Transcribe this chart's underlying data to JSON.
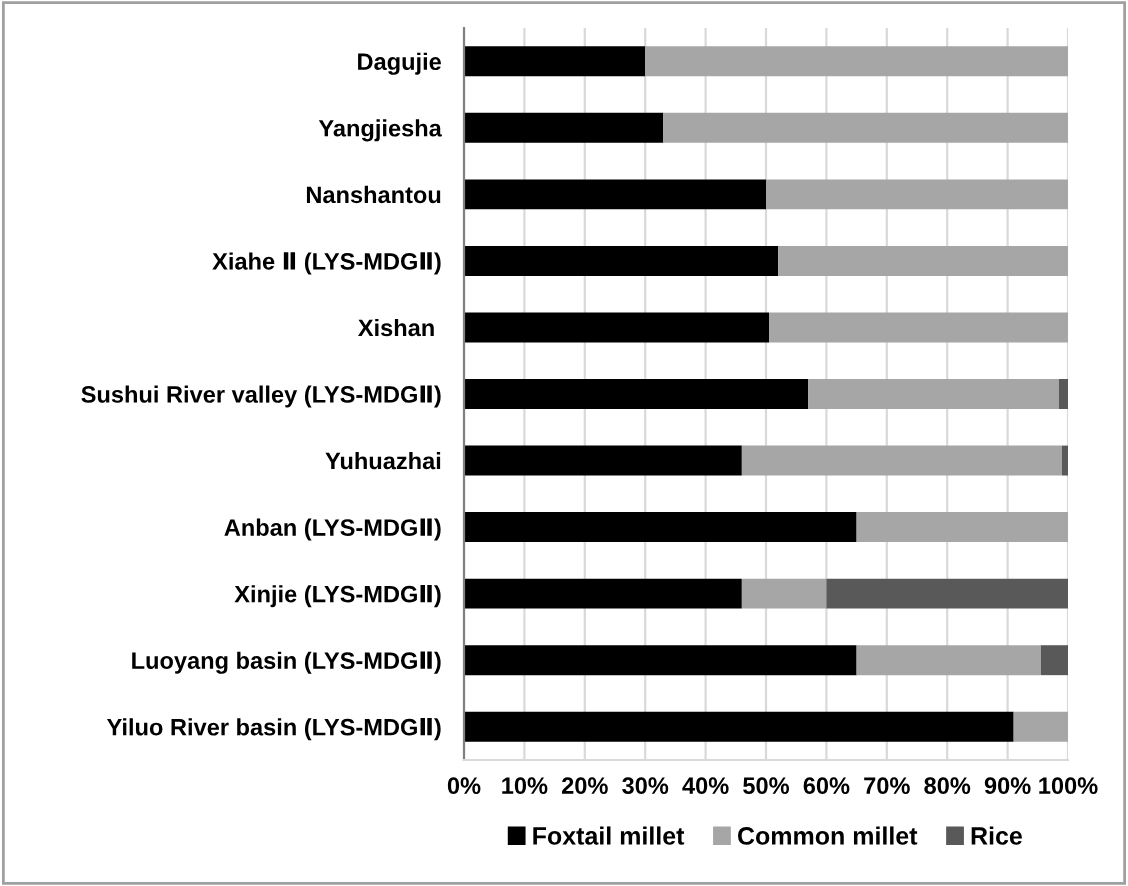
{
  "chart_data": {
    "type": "bar",
    "orientation": "horizontal",
    "stacked": true,
    "categories": [
      "Dagujie",
      "Yangjiesha",
      "Nanshantou",
      "Xiahe Ⅱ (LYS-MDGⅡ)",
      "Xishan ",
      "Sushui River valley (LYS-MDGⅡ)",
      "Yuhuazhai",
      "Anban (LYS-MDGⅡ)",
      "Xinjie (LYS-MDGⅡ)",
      "Luoyang basin (LYS-MDGⅡ)",
      "Yiluo River basin (LYS-MDGⅡ)"
    ],
    "series": [
      {
        "name": "Foxtail millet",
        "color": "#000000",
        "values": [
          30,
          33,
          50,
          52,
          50.5,
          57,
          46,
          65,
          46,
          65,
          91
        ]
      },
      {
        "name": "Common millet",
        "color": "#a6a6a6",
        "values": [
          70,
          67,
          50,
          48,
          49.5,
          41.5,
          53,
          35,
          14,
          30.5,
          9
        ]
      },
      {
        "name": "Rice",
        "color": "#595959",
        "values": [
          0,
          0,
          0,
          0,
          0,
          1.5,
          1,
          0,
          40,
          4.5,
          0
        ]
      }
    ],
    "xlim": [
      0,
      100
    ],
    "xticks": [
      {
        "value": 0,
        "label": "0%"
      },
      {
        "value": 10,
        "label": "10%"
      },
      {
        "value": 20,
        "label": "20%"
      },
      {
        "value": 30,
        "label": "30%"
      },
      {
        "value": 40,
        "label": "40%"
      },
      {
        "value": 50,
        "label": "50%"
      },
      {
        "value": 60,
        "label": "60%"
      },
      {
        "value": 70,
        "label": "70%"
      },
      {
        "value": 80,
        "label": "80%"
      },
      {
        "value": 90,
        "label": "90%"
      },
      {
        "value": 100,
        "label": "100%"
      }
    ],
    "grid": "x",
    "legend": "bottom"
  }
}
